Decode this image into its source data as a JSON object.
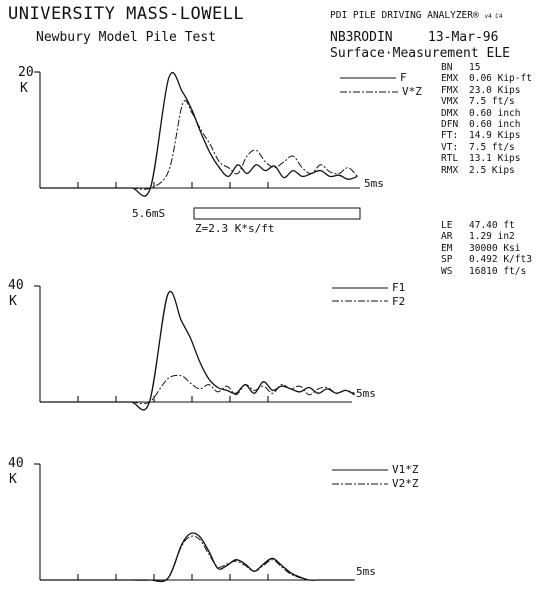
{
  "header": {
    "org": "UNIVERSITY MASS-LOWELL",
    "test": "Newbury Model Pile Test",
    "instrument": "PDI PILE DRIVING ANALYZER",
    "instrument_mark": "®",
    "instrument_ver": "v4 C4",
    "record": "NB3RODIN",
    "date": "13-Mar-96",
    "location": "Surface·Measurement ELE"
  },
  "stats": [
    {
      "k": "BN",
      "v": "15"
    },
    {
      "k": "EMX",
      "v": "0.06 Kip-ft"
    },
    {
      "k": "FMX",
      "v": "23.0 Kips"
    },
    {
      "k": "VMX",
      "v": "7.5 ft/s"
    },
    {
      "k": "DMX",
      "v": "0.60 inch"
    },
    {
      "k": "DFN",
      "v": "0.60 inch"
    },
    {
      "k": "FT:",
      "v": "14.9 Kips"
    },
    {
      "k": "VT:",
      "v": "7.5 ft/s"
    },
    {
      "k": "RTL",
      "v": "13.1 Kips"
    },
    {
      "k": "RMX",
      "v": "2.5 Kips"
    }
  ],
  "params": [
    {
      "k": "LE",
      "v": "47.40 ft"
    },
    {
      "k": "AR",
      "v": "1.29 in2"
    },
    {
      "k": "EM",
      "v": "30000 Ksi"
    },
    {
      "k": "SP",
      "v": "0.492 K/ft3"
    },
    {
      "k": "WS",
      "v": "16810 ft/s"
    }
  ],
  "chart_data": [
    {
      "type": "line",
      "panel": "force-velocity",
      "ylabel": "K",
      "ytick": "20",
      "ylim": [
        0,
        20
      ],
      "xlabel": "5ms",
      "time_label": "5.6mS",
      "impedance_label": "Z=2.3 K*s/ft",
      "x": [
        0.0,
        0.08,
        0.16,
        0.24,
        0.32,
        0.4,
        0.48,
        0.56,
        0.62,
        0.66,
        0.7,
        0.74,
        0.78,
        0.82,
        0.86,
        0.9,
        0.94,
        0.98,
        1.02,
        1.06,
        1.1,
        1.14,
        1.18,
        1.22,
        1.26,
        1.3,
        1.34,
        1.38
      ],
      "series": [
        {
          "name": "F",
          "style": "solid",
          "values": [
            0,
            0,
            0,
            0,
            0,
            0,
            0,
            19.0,
            16.5,
            13.5,
            9.5,
            6.0,
            3.5,
            2.0,
            4.0,
            2.5,
            4.0,
            3.0,
            3.8,
            1.8,
            3.0,
            2.0,
            2.5,
            3.0,
            2.0,
            2.2,
            1.5,
            2.0
          ]
        },
        {
          "name": "V*Z",
          "style": "dash-dot",
          "values": [
            0,
            0,
            0,
            0,
            0,
            0,
            0,
            3.0,
            14.5,
            13.0,
            10.0,
            7.5,
            4.5,
            3.5,
            2.5,
            5.5,
            6.5,
            4.5,
            3.5,
            4.5,
            5.5,
            3.5,
            2.5,
            4.0,
            2.8,
            2.5,
            3.5,
            2.0
          ]
        }
      ]
    },
    {
      "type": "line",
      "panel": "force",
      "ylabel": "K",
      "ytick": "40",
      "ylim": [
        0,
        40
      ],
      "xlabel": "5ms",
      "x": [
        0.0,
        0.08,
        0.16,
        0.24,
        0.32,
        0.4,
        0.48,
        0.56,
        0.62,
        0.66,
        0.7,
        0.74,
        0.78,
        0.82,
        0.86,
        0.9,
        0.94,
        0.98,
        1.02,
        1.06,
        1.1,
        1.14,
        1.18,
        1.22,
        1.26,
        1.3,
        1.34,
        1.38
      ],
      "series": [
        {
          "name": "F1",
          "style": "solid",
          "values": [
            0,
            0,
            0,
            0,
            0,
            0,
            0,
            37.0,
            28.0,
            22.0,
            14.0,
            8.0,
            5.0,
            4.0,
            3.0,
            6.0,
            3.0,
            7.0,
            4.0,
            5.5,
            4.5,
            3.5,
            5.0,
            3.0,
            4.5,
            3.0,
            4.0,
            2.5
          ]
        },
        {
          "name": "F2",
          "style": "dash-dot",
          "values": [
            0,
            0,
            0,
            0,
            0,
            0,
            0,
            8.0,
            9.0,
            6.5,
            4.5,
            6.0,
            3.5,
            5.5,
            2.5,
            6.0,
            4.0,
            5.5,
            3.0,
            6.0,
            4.5,
            5.5,
            2.5,
            4.5,
            5.0,
            3.0,
            4.0,
            3.0
          ]
        }
      ]
    },
    {
      "type": "line",
      "panel": "velocity",
      "ylabel": "K",
      "ytick": "40",
      "ylim": [
        0,
        40
      ],
      "xlabel": "5ms",
      "x": [
        0.0,
        0.08,
        0.16,
        0.24,
        0.32,
        0.4,
        0.48,
        0.56,
        0.62,
        0.66,
        0.7,
        0.74,
        0.78,
        0.82,
        0.86,
        0.9,
        0.94,
        0.98,
        1.02,
        1.06,
        1.1,
        1.14,
        1.18,
        1.22,
        1.26,
        1.3,
        1.34,
        1.38
      ],
      "series": [
        {
          "name": "V1*Z",
          "style": "solid",
          "values": [
            0,
            0,
            0,
            0,
            0,
            0,
            0,
            0.5,
            12.0,
            16.0,
            15.0,
            10.0,
            4.0,
            5.0,
            7.0,
            5.5,
            3.0,
            5.5,
            7.5,
            5.0,
            2.5,
            1.0,
            0,
            0,
            0,
            0,
            0,
            0
          ]
        },
        {
          "name": "V2*Z",
          "style": "dash-dot",
          "values": [
            0,
            0,
            0,
            0,
            0,
            0,
            0,
            0.5,
            11.5,
            15.0,
            14.0,
            9.0,
            4.5,
            5.5,
            6.5,
            5.0,
            3.0,
            5.0,
            7.0,
            4.5,
            2.0,
            0.8,
            0,
            0,
            0,
            0,
            0,
            0
          ]
        }
      ]
    }
  ]
}
